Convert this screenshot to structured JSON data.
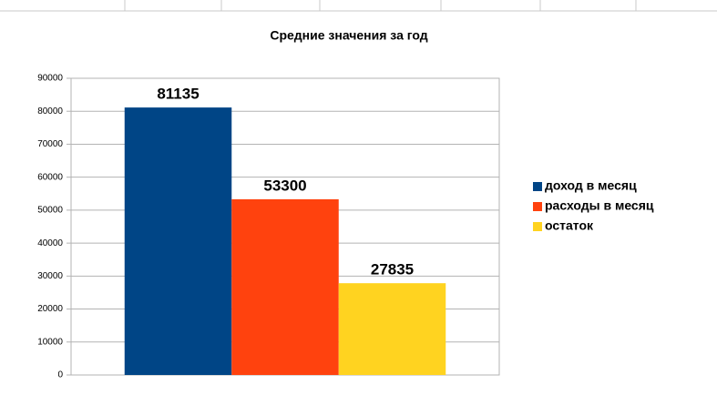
{
  "chart_data": {
    "type": "bar",
    "title": "Средние значения за год",
    "categories": [
      null
    ],
    "series": [
      {
        "name": "доход в месяц",
        "color": "#004586",
        "values": [
          81135
        ]
      },
      {
        "name": "расходы в месяц",
        "color": "#ff420e",
        "values": [
          53300
        ]
      },
      {
        "name": "остаток",
        "color": "#ffd320",
        "values": [
          27835
        ]
      }
    ],
    "ylim": [
      0,
      90000
    ],
    "yticks": [
      0,
      10000,
      20000,
      30000,
      40000,
      50000,
      60000,
      70000,
      80000,
      90000
    ],
    "grid": true,
    "legend": "right",
    "data_labels": true
  }
}
